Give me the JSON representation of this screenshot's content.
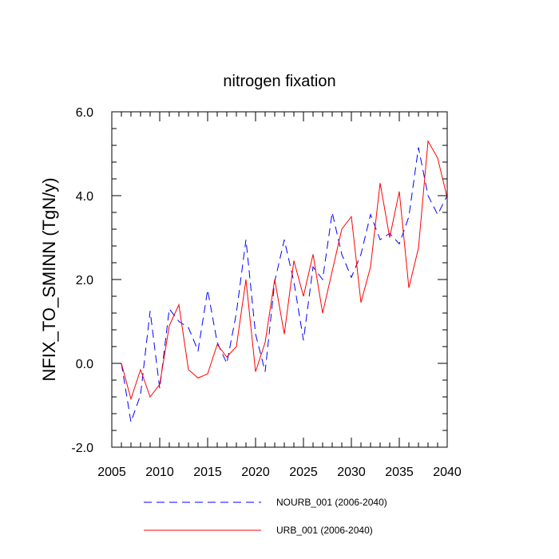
{
  "chart_data": {
    "type": "line",
    "title": "nitrogen fixation",
    "xlabel": "",
    "ylabel": "NFIX_TO_SMINN  (TgN/y)",
    "xlim": [
      2005,
      2040
    ],
    "ylim": [
      -2.0,
      6.0
    ],
    "x_ticks": [
      2005,
      2010,
      2015,
      2020,
      2025,
      2030,
      2035,
      2040
    ],
    "x_tick_labels": [
      "2005",
      "2010",
      "2015",
      "2020",
      "2025",
      "2030",
      "2035",
      "2040"
    ],
    "y_ticks": [
      -2.0,
      0.0,
      2.0,
      4.0,
      6.0
    ],
    "y_tick_labels": [
      "-2.0",
      "0.0",
      "2.0",
      "4.0",
      "6.0"
    ],
    "grid": false,
    "legend_position": "bottom",
    "x": [
      2006,
      2007,
      2008,
      2009,
      2010,
      2011,
      2012,
      2013,
      2014,
      2015,
      2016,
      2017,
      2018,
      2019,
      2020,
      2021,
      2022,
      2023,
      2024,
      2025,
      2026,
      2027,
      2028,
      2029,
      2030,
      2031,
      2032,
      2033,
      2034,
      2035,
      2036,
      2037,
      2038,
      2039,
      2040
    ],
    "series": [
      {
        "name": "NOURB_001 (2006-2040)",
        "color": "#0000ff",
        "dash": "dashed",
        "values": [
          0.0,
          -1.4,
          -0.75,
          1.25,
          -0.6,
          1.3,
          1.0,
          0.85,
          0.3,
          1.75,
          0.5,
          0.0,
          1.2,
          2.95,
          0.7,
          -0.2,
          1.95,
          2.95,
          1.95,
          0.55,
          2.3,
          2.0,
          3.6,
          2.6,
          2.05,
          2.6,
          3.55,
          2.95,
          3.1,
          2.85,
          3.5,
          5.15,
          4.0,
          3.55,
          4.0
        ]
      },
      {
        "name": "URB_001 (2006-2040)",
        "color": "#ff0000",
        "dash": "solid",
        "values": [
          0.0,
          -0.85,
          -0.15,
          -0.8,
          -0.5,
          0.9,
          1.4,
          -0.15,
          -0.35,
          -0.25,
          0.45,
          0.15,
          0.4,
          2.0,
          -0.2,
          0.5,
          2.0,
          0.7,
          2.45,
          1.6,
          2.6,
          1.2,
          2.2,
          3.2,
          3.5,
          1.45,
          2.3,
          4.3,
          3.0,
          4.1,
          1.8,
          2.75,
          5.3,
          4.9,
          3.95
        ]
      }
    ]
  }
}
